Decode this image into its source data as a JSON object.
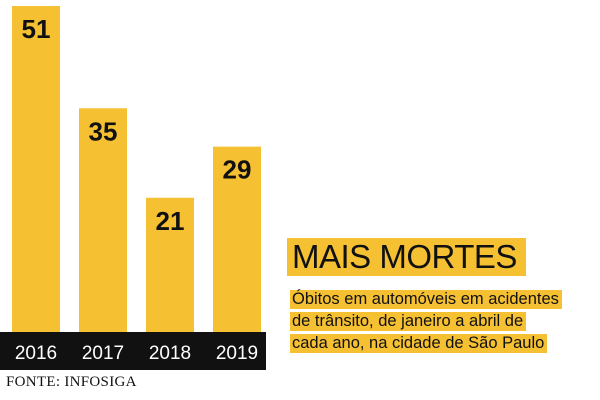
{
  "chart_data": {
    "type": "bar",
    "title": "MAIS MORTES",
    "subtitle_lines": [
      "Óbitos em automóveis em acidentes",
      "de trânsito, de janeiro a abril de",
      "cada ano, na cidade de São Paulo"
    ],
    "categories": [
      "2016",
      "2017",
      "2018",
      "2019"
    ],
    "values": [
      51,
      35,
      21,
      29
    ],
    "xlabel": "",
    "ylabel": "",
    "ylim": [
      0,
      51
    ],
    "grid": false,
    "bar_color": "#f6c033",
    "axis_band_color": "#111111",
    "source": "FONTE: INFOSIGA"
  }
}
